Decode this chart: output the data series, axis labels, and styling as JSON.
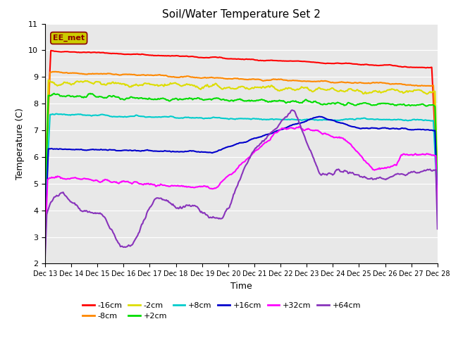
{
  "title": "Soil/Water Temperature Set 2",
  "xlabel": "Time",
  "ylabel": "Temperature (C)",
  "ylim": [
    2.0,
    11.0
  ],
  "yticks": [
    2.0,
    3.0,
    4.0,
    5.0,
    6.0,
    7.0,
    8.0,
    9.0,
    10.0,
    11.0
  ],
  "x_labels": [
    "Dec 13",
    "Dec 14",
    "Dec 15",
    "Dec 16",
    "Dec 17",
    "Dec 18",
    "Dec 19",
    "Dec 20",
    "Dec 21",
    "Dec 22",
    "Dec 23",
    "Dec 24",
    "Dec 25",
    "Dec 26",
    "Dec 27",
    "Dec 28"
  ],
  "annotation_label": "EE_met",
  "annotation_bg": "#cccc00",
  "annotation_fg": "#8b0000",
  "series": {
    "-16cm": {
      "color": "#ff0000",
      "lw": 1.5
    },
    "-8cm": {
      "color": "#ff8800",
      "lw": 1.5
    },
    "-2cm": {
      "color": "#dddd00",
      "lw": 1.5
    },
    "+2cm": {
      "color": "#00dd00",
      "lw": 1.5
    },
    "+8cm": {
      "color": "#00cccc",
      "lw": 1.5
    },
    "+16cm": {
      "color": "#0000cc",
      "lw": 1.5
    },
    "+32cm": {
      "color": "#ff00ff",
      "lw": 1.5
    },
    "+64cm": {
      "color": "#8833bb",
      "lw": 1.5
    }
  },
  "fig_bg": "#ffffff",
  "plot_bg": "#e8e8e8",
  "grid_color": "#ffffff",
  "legend_ncol1": 6,
  "legend_ncol2": 2
}
